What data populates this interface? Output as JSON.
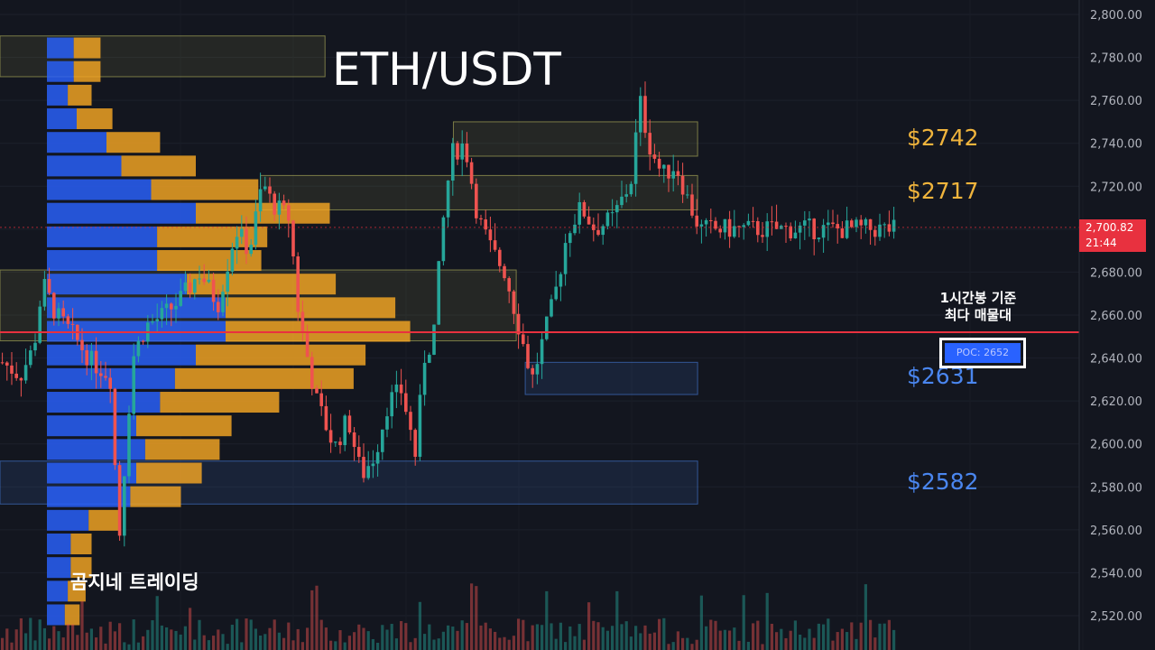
{
  "title": "ETH/USDT",
  "brand": "곰지네 트레이딩",
  "annotation": {
    "line1": "1시간봉 기준",
    "line2": "최다 매물대",
    "poc_label": "POC: 2652"
  },
  "price_tag": {
    "price": "2,700.82",
    "countdown": "21:44"
  },
  "levels": [
    {
      "label": "$2742",
      "value": 2742,
      "color": "#f0b43c"
    },
    {
      "label": "$2717",
      "value": 2717,
      "color": "#f0b43c"
    },
    {
      "label": "$2631",
      "value": 2631,
      "color": "#4a86ef"
    },
    {
      "label": "$2582",
      "value": 2582,
      "color": "#4a86ef"
    }
  ],
  "colors": {
    "background": "#13161f",
    "up_candle": "#26a69a",
    "down_candle": "#ef5350",
    "volume_profile_buy": "#2962ff",
    "volume_profile_sell": "#f5a623",
    "poc_line": "#e8313f",
    "resistance_zone": "#c8c864",
    "support_zone": "#4a86ef"
  },
  "chart_data": {
    "type": "candlestick",
    "symbol": "ETH/USDT",
    "y_axis": {
      "min": 2510,
      "max": 2805,
      "ticks": [
        "2,520.00",
        "2,540.00",
        "2,560.00",
        "2,580.00",
        "2,600.00",
        "2,620.00",
        "2,640.00",
        "2,660.00",
        "2,680.00",
        "2,700.00",
        "2,720.00",
        "2,740.00",
        "2,760.00",
        "2,780.00",
        "2,800.00"
      ],
      "tick_values": [
        2520,
        2540,
        2560,
        2580,
        2600,
        2620,
        2640,
        2660,
        2680,
        2700,
        2720,
        2740,
        2760,
        2780,
        2800
      ]
    },
    "current_price": 2700.82,
    "poc": 2652,
    "zones": [
      {
        "kind": "resistance",
        "low": 2734,
        "high": 2750,
        "x_start": 0.505,
        "x_end": 0.777
      },
      {
        "kind": "resistance",
        "low": 2709,
        "high": 2725,
        "x_start": 0.29,
        "x_end": 0.777
      },
      {
        "kind": "resistance",
        "low": 2771,
        "high": 2790,
        "x_start": 0.0,
        "x_end": 0.362
      },
      {
        "kind": "resistance",
        "low": 2648,
        "high": 2681,
        "x_start": 0.0,
        "x_end": 0.575
      },
      {
        "kind": "support",
        "low": 2623,
        "high": 2638,
        "x_start": 0.585,
        "x_end": 0.777
      },
      {
        "kind": "support",
        "low": 2572,
        "high": 2592,
        "x_start": 0.0,
        "x_end": 0.777
      }
    ],
    "price_path": [
      [
        0.0,
        2638
      ],
      [
        0.02,
        2632
      ],
      [
        0.035,
        2645
      ],
      [
        0.045,
        2675
      ],
      [
        0.06,
        2660
      ],
      [
        0.08,
        2650
      ],
      [
        0.1,
        2638
      ],
      [
        0.12,
        2632
      ],
      [
        0.13,
        2555
      ],
      [
        0.145,
        2640
      ],
      [
        0.16,
        2655
      ],
      [
        0.18,
        2660
      ],
      [
        0.2,
        2668
      ],
      [
        0.22,
        2680
      ],
      [
        0.24,
        2665
      ],
      [
        0.26,
        2700
      ],
      [
        0.275,
        2690
      ],
      [
        0.29,
        2722
      ],
      [
        0.3,
        2712
      ],
      [
        0.32,
        2705
      ],
      [
        0.33,
        2660
      ],
      [
        0.35,
        2620
      ],
      [
        0.37,
        2598
      ],
      [
        0.385,
        2612
      ],
      [
        0.4,
        2585
      ],
      [
        0.415,
        2595
      ],
      [
        0.43,
        2620
      ],
      [
        0.445,
        2625
      ],
      [
        0.46,
        2595
      ],
      [
        0.47,
        2640
      ],
      [
        0.48,
        2650
      ],
      [
        0.49,
        2700
      ],
      [
        0.5,
        2735
      ],
      [
        0.515,
        2740
      ],
      [
        0.53,
        2705
      ],
      [
        0.545,
        2690
      ],
      [
        0.56,
        2680
      ],
      [
        0.575,
        2655
      ],
      [
        0.59,
        2630
      ],
      [
        0.6,
        2645
      ],
      [
        0.615,
        2668
      ],
      [
        0.63,
        2700
      ],
      [
        0.645,
        2710
      ],
      [
        0.66,
        2700
      ],
      [
        0.68,
        2705
      ],
      [
        0.7,
        2722
      ],
      [
        0.71,
        2760
      ],
      [
        0.72,
        2740
      ],
      [
        0.735,
        2725
      ],
      [
        0.75,
        2730
      ],
      [
        0.765,
        2712
      ],
      [
        0.777,
        2700
      ]
    ],
    "volume_profile": [
      {
        "price": 2784,
        "buy": 0.09,
        "sell": 0.09
      },
      {
        "price": 2773,
        "buy": 0.09,
        "sell": 0.09
      },
      {
        "price": 2762,
        "buy": 0.07,
        "sell": 0.08
      },
      {
        "price": 2751,
        "buy": 0.1,
        "sell": 0.12
      },
      {
        "price": 2740,
        "buy": 0.2,
        "sell": 0.18
      },
      {
        "price": 2729,
        "buy": 0.25,
        "sell": 0.25
      },
      {
        "price": 2718,
        "buy": 0.35,
        "sell": 0.36
      },
      {
        "price": 2707,
        "buy": 0.5,
        "sell": 0.45
      },
      {
        "price": 2696,
        "buy": 0.37,
        "sell": 0.37
      },
      {
        "price": 2685,
        "buy": 0.37,
        "sell": 0.35
      },
      {
        "price": 2674,
        "buy": 0.47,
        "sell": 0.5
      },
      {
        "price": 2663,
        "buy": 0.6,
        "sell": 0.57
      },
      {
        "price": 2652,
        "buy": 0.6,
        "sell": 0.62
      },
      {
        "price": 2641,
        "buy": 0.5,
        "sell": 0.57
      },
      {
        "price": 2630,
        "buy": 0.43,
        "sell": 0.6
      },
      {
        "price": 2619,
        "buy": 0.38,
        "sell": 0.4
      },
      {
        "price": 2608,
        "buy": 0.3,
        "sell": 0.32
      },
      {
        "price": 2597,
        "buy": 0.33,
        "sell": 0.25
      },
      {
        "price": 2586,
        "buy": 0.3,
        "sell": 0.22
      },
      {
        "price": 2575,
        "buy": 0.28,
        "sell": 0.17
      },
      {
        "price": 2564,
        "buy": 0.14,
        "sell": 0.1
      },
      {
        "price": 2553,
        "buy": 0.08,
        "sell": 0.07
      },
      {
        "price": 2542,
        "buy": 0.08,
        "sell": 0.07
      },
      {
        "price": 2531,
        "buy": 0.07,
        "sell": 0.06
      },
      {
        "price": 2520,
        "buy": 0.06,
        "sell": 0.05
      }
    ]
  }
}
